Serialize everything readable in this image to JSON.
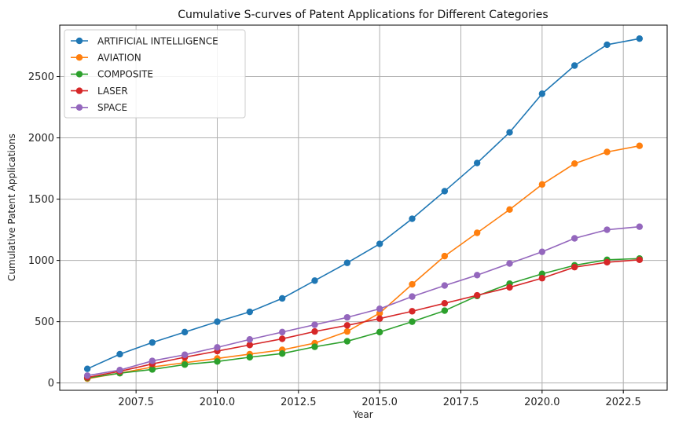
{
  "chart_data": {
    "type": "line",
    "title": "Cumulative S-curves of Patent Applications for Different Categories",
    "xlabel": "Year",
    "ylabel": "Cumulative Patent Applications",
    "xlim": [
      2005.15,
      2023.85
    ],
    "ylim": [
      -60,
      2920
    ],
    "xticks": [
      2007.5,
      2010.0,
      2012.5,
      2015.0,
      2017.5,
      2020.0,
      2022.5
    ],
    "xtick_labels": [
      "2007.5",
      "2010.0",
      "2012.5",
      "2015.0",
      "2017.5",
      "2020.0",
      "2022.5"
    ],
    "yticks": [
      0,
      500,
      1000,
      1500,
      2000,
      2500
    ],
    "ytick_labels": [
      "0",
      "500",
      "1000",
      "1500",
      "2000",
      "2500"
    ],
    "grid": true,
    "legend_position": "top-left",
    "x": [
      2006,
      2007,
      2008,
      2009,
      2010,
      2011,
      2012,
      2013,
      2014,
      2015,
      2016,
      2017,
      2018,
      2019,
      2020,
      2021,
      2022,
      2023
    ],
    "series": [
      {
        "name": "ARTIFICIAL INTELLIGENCE",
        "color": "#1f77b4",
        "values": [
          115,
          235,
          330,
          415,
          500,
          580,
          690,
          835,
          980,
          1135,
          1340,
          1565,
          1795,
          2045,
          2360,
          2590,
          2760,
          2810
        ]
      },
      {
        "name": "AVIATION",
        "color": "#ff7f0e",
        "values": [
          35,
          80,
          130,
          165,
          200,
          235,
          270,
          325,
          420,
          570,
          805,
          1035,
          1225,
          1415,
          1620,
          1790,
          1885,
          1935
        ]
      },
      {
        "name": "COMPOSITE",
        "color": "#2ca02c",
        "values": [
          40,
          80,
          110,
          150,
          175,
          210,
          240,
          295,
          340,
          415,
          500,
          590,
          710,
          810,
          890,
          960,
          1005,
          1015
        ]
      },
      {
        "name": "LASER",
        "color": "#d62728",
        "values": [
          45,
          95,
          155,
          210,
          260,
          310,
          360,
          420,
          470,
          525,
          585,
          650,
          715,
          780,
          855,
          945,
          985,
          1005
        ]
      },
      {
        "name": "SPACE",
        "color": "#9467bd",
        "values": [
          60,
          105,
          180,
          230,
          290,
          355,
          415,
          475,
          535,
          605,
          705,
          795,
          880,
          975,
          1070,
          1180,
          1250,
          1275
        ]
      }
    ]
  }
}
